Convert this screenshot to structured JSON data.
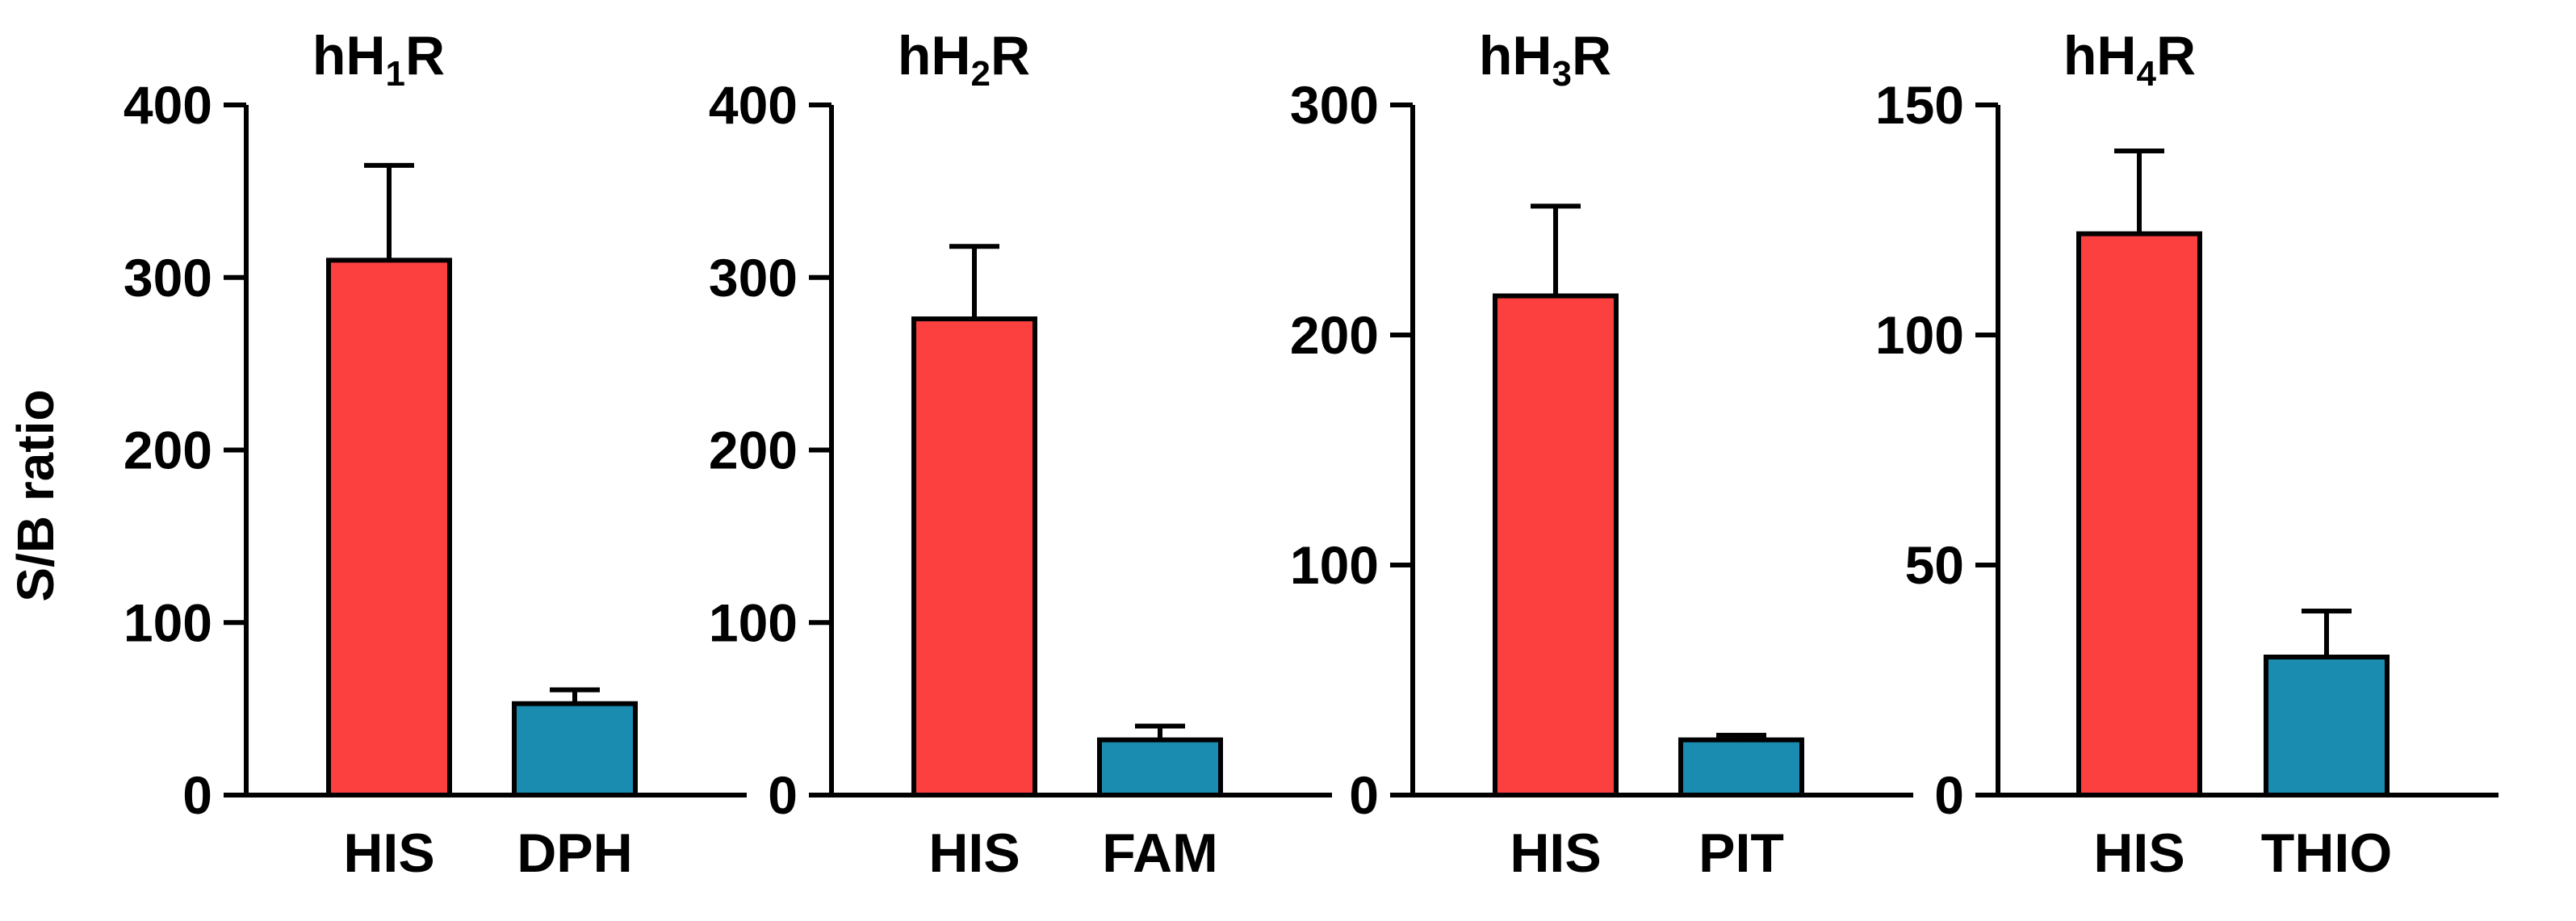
{
  "ylabel": "S/B ratio",
  "chart_data": [
    {
      "type": "bar",
      "title": "hH1R",
      "title_main": "hH",
      "title_sub": "1",
      "title_suffix": "R",
      "categories": [
        "HIS",
        "DPH"
      ],
      "values": [
        310,
        53
      ],
      "error": [
        55,
        8
      ],
      "colors": [
        "#fc4040",
        "#1a8cb0"
      ],
      "ylim": [
        0,
        400
      ],
      "yticks": [
        0,
        100,
        200,
        300,
        400
      ],
      "ylabel": "S/B ratio"
    },
    {
      "type": "bar",
      "title": "hH2R",
      "title_main": "hH",
      "title_sub": "2",
      "title_suffix": "R",
      "categories": [
        "HIS",
        "FAM"
      ],
      "values": [
        276,
        32
      ],
      "error": [
        42,
        8
      ],
      "colors": [
        "#fc4040",
        "#1a8cb0"
      ],
      "ylim": [
        0,
        400
      ],
      "yticks": [
        0,
        100,
        200,
        300,
        400
      ]
    },
    {
      "type": "bar",
      "title": "hH3R",
      "title_main": "hH",
      "title_sub": "3",
      "title_suffix": "R",
      "categories": [
        "HIS",
        "PIT"
      ],
      "values": [
        217,
        24
      ],
      "error": [
        39,
        2
      ],
      "colors": [
        "#fc4040",
        "#1a8cb0"
      ],
      "ylim": [
        0,
        300
      ],
      "yticks": [
        0,
        100,
        200,
        300
      ]
    },
    {
      "type": "bar",
      "title": "hH4R",
      "title_main": "hH",
      "title_sub": "4",
      "title_suffix": "R",
      "categories": [
        "HIS",
        "THIO"
      ],
      "values": [
        122,
        30
      ],
      "error": [
        18,
        10
      ],
      "colors": [
        "#fc4040",
        "#1a8cb0"
      ],
      "ylim": [
        0,
        150
      ],
      "yticks": [
        0,
        50,
        100,
        150
      ]
    }
  ]
}
